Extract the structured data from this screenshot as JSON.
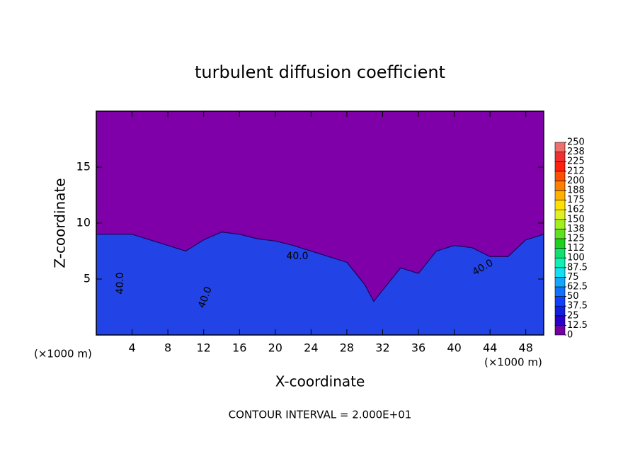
{
  "chart_data": {
    "type": "contour",
    "title": "turbulent diffusion coefficient",
    "xlabel": "X-coordinate",
    "ylabel": "Z-coordinate",
    "x_unit_left": "(×1000 m)",
    "x_unit_right": "(×1000 m)",
    "footer": "CONTOUR INTERVAL = 2.000E+01",
    "xlim": [
      0,
      50
    ],
    "ylim": [
      0,
      20
    ],
    "xticks": [
      4,
      8,
      12,
      16,
      20,
      24,
      28,
      32,
      36,
      40,
      44,
      48
    ],
    "yticks": [
      5,
      10,
      15
    ],
    "background_color": "#7f00a8",
    "layer_color": "#2244e6",
    "layer_top": {
      "x": [
        0,
        4,
        6,
        8,
        10,
        12,
        14,
        16,
        18,
        20,
        22,
        24,
        26,
        28,
        30,
        31,
        32,
        34,
        36,
        38,
        40,
        42,
        44,
        46,
        48,
        50
      ],
      "z": [
        9,
        9,
        8.5,
        8,
        7.5,
        8.5,
        9.2,
        9,
        8.6,
        8.4,
        8,
        7.5,
        7,
        6.5,
        4.5,
        3,
        4,
        6,
        5.5,
        7.5,
        8,
        7.8,
        7,
        7,
        8.5,
        9
      ]
    },
    "contour_labels": [
      "40.0",
      "40.0",
      "40.0",
      "40.0"
    ],
    "colorbar": {
      "ticks": [
        0,
        12.5,
        25,
        37.5,
        50,
        62.5,
        75,
        87.5,
        100,
        {
          "value": 112.5,
          "label": "112"
        },
        125,
        {
          "value": 137.5,
          "label": "138"
        },
        150,
        {
          "value": 162.5,
          "label": "162"
        },
        175,
        {
          "value": 187.5,
          "label": "188"
        },
        200,
        {
          "value": 212.5,
          "label": "212"
        },
        225,
        {
          "value": 237.5,
          "label": "238"
        },
        250
      ],
      "colors": [
        "#7000a0",
        "#2a00c8",
        "#1020e0",
        "#1040ff",
        "#1070ff",
        "#10a8ff",
        "#10e0f0",
        "#10f0b0",
        "#10e070",
        "#20d020",
        "#60e020",
        "#a0f020",
        "#e0f020",
        "#ffe000",
        "#ffb000",
        "#ff8000",
        "#ff5000",
        "#ff2010",
        "#f03030",
        "#f07070"
      ]
    }
  }
}
